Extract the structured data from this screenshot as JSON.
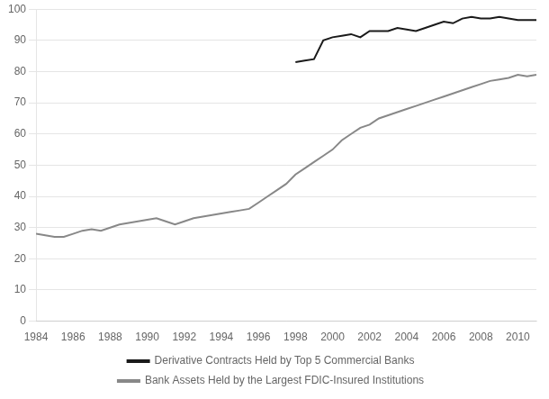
{
  "chart_data": {
    "type": "line",
    "x": [
      1984,
      1984.5,
      1985,
      1985.5,
      1986,
      1986.5,
      1987,
      1987.5,
      1988,
      1988.5,
      1989,
      1989.5,
      1990,
      1990.5,
      1991,
      1991.5,
      1992,
      1992.5,
      1993,
      1993.5,
      1994,
      1994.5,
      1995,
      1995.5,
      1996,
      1996.5,
      1997,
      1997.5,
      1998,
      1998.5,
      1999,
      1999.5,
      2000,
      2000.5,
      2001,
      2001.5,
      2002,
      2002.5,
      2003,
      2003.5,
      2004,
      2004.5,
      2005,
      2005.5,
      2006,
      2006.5,
      2007,
      2007.5,
      2008,
      2008.5,
      2009,
      2009.5,
      2010,
      2010.5,
      2011
    ],
    "series": [
      {
        "name": "Derivative Contracts Held by Top 5 Commercial Banks",
        "color": "#1a1a1a",
        "values": [
          null,
          null,
          null,
          null,
          null,
          null,
          null,
          null,
          null,
          null,
          null,
          null,
          null,
          null,
          null,
          null,
          null,
          null,
          null,
          null,
          null,
          null,
          null,
          null,
          null,
          null,
          null,
          null,
          83,
          83.5,
          84,
          90,
          91,
          91.5,
          92,
          91,
          93,
          93,
          93,
          94,
          93.5,
          93,
          94,
          95,
          96,
          95.5,
          97,
          97.5,
          97,
          97,
          97.5,
          97,
          96.5,
          96.5,
          96.5
        ]
      },
      {
        "name": "Bank Assets Held by the Largest FDIC-Insured Institutions",
        "color": "#888888",
        "values": [
          28,
          27.5,
          27,
          27,
          28,
          29,
          29.5,
          29,
          30,
          31,
          31.5,
          32,
          32.5,
          33,
          32,
          31,
          32,
          33,
          33.5,
          34,
          34.5,
          35,
          35.5,
          36,
          38,
          40,
          42,
          44,
          47,
          49,
          51,
          53,
          55,
          58,
          60,
          62,
          63,
          65,
          66,
          67,
          68,
          69,
          70,
          71,
          72,
          73,
          74,
          75,
          76,
          77,
          77.5,
          78,
          79,
          78.5,
          79
        ]
      }
    ],
    "xlim": [
      1984,
      2011
    ],
    "ylim": [
      0,
      100
    ],
    "xticks": [
      1984,
      1986,
      1988,
      1990,
      1992,
      1994,
      1996,
      1998,
      2000,
      2002,
      2004,
      2006,
      2008,
      2010
    ],
    "yticks": [
      0,
      10,
      20,
      30,
      40,
      50,
      60,
      70,
      80,
      90,
      100
    ],
    "grid": "y",
    "legend": "bottom"
  }
}
